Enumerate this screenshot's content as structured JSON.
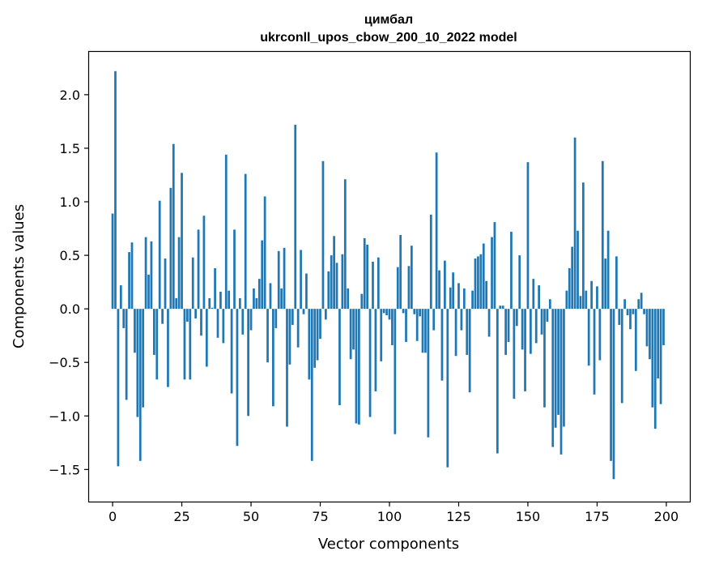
{
  "chart_data": {
    "type": "bar",
    "title": "цимбал",
    "subtitle": "ukrconll_upos_cbow_200_10_2022 model",
    "xlabel": "Vector components",
    "ylabel": "Components values",
    "xlim": [
      -8.5,
      208.5
    ],
    "ylim": [
      -1.8,
      2.4
    ],
    "xticks": [
      0,
      25,
      50,
      75,
      100,
      125,
      150,
      175,
      200
    ],
    "yticks": [
      -1.5,
      -1.0,
      -0.5,
      0.0,
      0.5,
      1.0,
      1.5,
      2.0
    ],
    "xtick_labels": [
      "0",
      "25",
      "50",
      "75",
      "100",
      "125",
      "150",
      "175",
      "200"
    ],
    "ytick_labels": [
      "−1.5",
      "−1.0",
      "−0.5",
      "0.0",
      "0.5",
      "1.0",
      "1.5",
      "2.0"
    ],
    "bar_color": "#1f77b4",
    "grid": false,
    "x": [
      0,
      1,
      2,
      3,
      4,
      5,
      6,
      7,
      8,
      9,
      10,
      11,
      12,
      13,
      14,
      15,
      16,
      17,
      18,
      19,
      20,
      21,
      22,
      23,
      24,
      25,
      26,
      27,
      28,
      29,
      30,
      31,
      32,
      33,
      34,
      35,
      36,
      37,
      38,
      39,
      40,
      41,
      42,
      43,
      44,
      45,
      46,
      47,
      48,
      49,
      50,
      51,
      52,
      53,
      54,
      55,
      56,
      57,
      58,
      59,
      60,
      61,
      62,
      63,
      64,
      65,
      66,
      67,
      68,
      69,
      70,
      71,
      72,
      73,
      74,
      75,
      76,
      77,
      78,
      79,
      80,
      81,
      82,
      83,
      84,
      85,
      86,
      87,
      88,
      89,
      90,
      91,
      92,
      93,
      94,
      95,
      96,
      97,
      98,
      99,
      100,
      101,
      102,
      103,
      104,
      105,
      106,
      107,
      108,
      109,
      110,
      111,
      112,
      113,
      114,
      115,
      116,
      117,
      118,
      119,
      120,
      121,
      122,
      123,
      124,
      125,
      126,
      127,
      128,
      129,
      130,
      131,
      132,
      133,
      134,
      135,
      136,
      137,
      138,
      139,
      140,
      141,
      142,
      143,
      144,
      145,
      146,
      147,
      148,
      149,
      150,
      151,
      152,
      153,
      154,
      155,
      156,
      157,
      158,
      159,
      160,
      161,
      162,
      163,
      164,
      165,
      166,
      167,
      168,
      169,
      170,
      171,
      172,
      173,
      174,
      175,
      176,
      177,
      178,
      179,
      180,
      181,
      182,
      183,
      184,
      185,
      186,
      187,
      188,
      189,
      190,
      191,
      192,
      193,
      194,
      195,
      196,
      197,
      198,
      199
    ],
    "values": [
      0.89,
      2.22,
      -1.47,
      0.22,
      -0.18,
      -0.85,
      0.53,
      0.62,
      -0.41,
      -1.01,
      -1.42,
      -0.92,
      0.67,
      0.32,
      0.63,
      -0.43,
      -0.66,
      1.01,
      -0.14,
      0.47,
      -0.73,
      1.13,
      1.54,
      0.1,
      0.67,
      1.27,
      -0.66,
      -0.12,
      -0.66,
      0.48,
      -0.09,
      0.74,
      -0.25,
      0.87,
      -0.54,
      0.1,
      0.01,
      0.38,
      -0.27,
      0.16,
      -0.32,
      1.44,
      0.17,
      -0.79,
      0.74,
      -1.28,
      0.1,
      -0.24,
      1.26,
      -1.0,
      -0.2,
      0.19,
      0.1,
      0.28,
      0.64,
      1.05,
      -0.5,
      0.24,
      -0.91,
      -0.18,
      0.54,
      0.19,
      0.57,
      -1.1,
      -0.52,
      -0.15,
      1.72,
      -0.36,
      0.55,
      -0.05,
      0.33,
      -0.66,
      -1.42,
      -0.55,
      -0.48,
      -0.28,
      1.38,
      -0.1,
      0.35,
      0.5,
      0.68,
      0.43,
      -0.9,
      0.51,
      1.21,
      0.19,
      -0.47,
      -0.38,
      -1.07,
      -1.08,
      0.14,
      0.66,
      0.6,
      -1.01,
      0.44,
      -0.77,
      0.48,
      -0.49,
      -0.04,
      -0.06,
      -0.1,
      -0.34,
      -1.17,
      0.39,
      0.69,
      -0.04,
      -0.31,
      0.4,
      0.59,
      -0.05,
      -0.3,
      -0.07,
      -0.41,
      -0.41,
      -1.2,
      0.88,
      -0.2,
      1.46,
      0.36,
      -0.67,
      0.45,
      -1.48,
      0.2,
      0.34,
      -0.44,
      0.24,
      -0.2,
      0.19,
      -0.43,
      -0.78,
      0.17,
      0.47,
      0.49,
      0.51,
      0.61,
      0.26,
      -0.26,
      0.67,
      0.81,
      -1.35,
      0.03,
      0.03,
      -0.43,
      -0.31,
      0.72,
      -0.84,
      -0.16,
      0.5,
      -0.38,
      -0.77,
      1.37,
      -0.42,
      0.28,
      -0.32,
      0.22,
      -0.24,
      -0.92,
      -0.12,
      0.09,
      -1.29,
      -1.11,
      -0.99,
      -1.36,
      -1.1,
      0.17,
      0.38,
      0.58,
      1.6,
      0.73,
      0.12,
      1.18,
      0.17,
      -0.53,
      0.26,
      -0.8,
      0.21,
      -0.48,
      1.38,
      0.47,
      0.73,
      -1.42,
      -1.59,
      0.49,
      -0.15,
      -0.88,
      0.09,
      -0.06,
      -0.19,
      -0.05,
      -0.58,
      0.09,
      0.15,
      -0.05,
      -0.35,
      -0.47,
      -0.92,
      -1.12,
      -0.65,
      -0.89,
      -0.34
    ]
  }
}
